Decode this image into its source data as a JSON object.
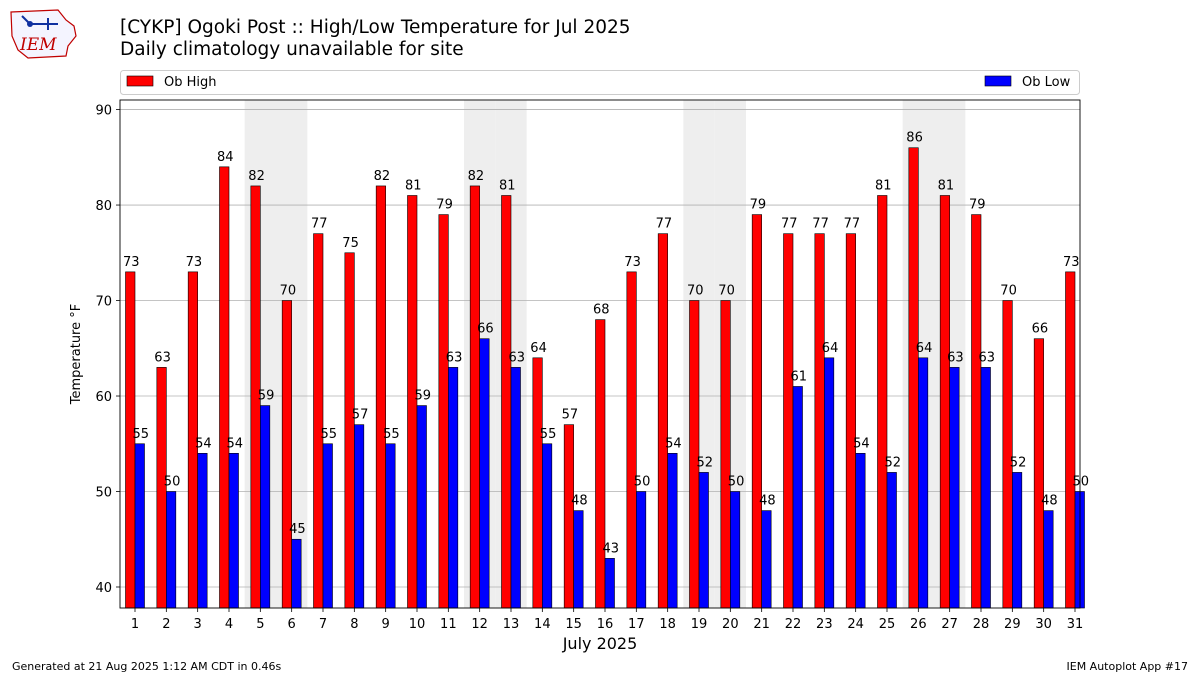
{
  "title_line1": "[CYKP] Ogoki Post :: High/Low Temperature for Jul 2025",
  "title_line2": "Daily climatology unavailable for site",
  "logo_text": "IEM",
  "footer_left": "Generated at 21 Aug 2025 1:12 AM CDT in 0.46s",
  "footer_right": "IEM Autoplot App #17",
  "chart_data": {
    "type": "bar",
    "title": "[CYKP] Ogoki Post :: High/Low Temperature for Jul 2025",
    "subtitle": "Daily climatology unavailable for site",
    "xlabel": "July 2025",
    "ylabel": "Temperature °F",
    "ylim": [
      37.8,
      91
    ],
    "yticks": [
      40,
      50,
      60,
      70,
      80,
      90
    ],
    "grid": true,
    "legend": "top",
    "categories": [
      "1",
      "2",
      "3",
      "4",
      "5",
      "6",
      "7",
      "8",
      "9",
      "10",
      "11",
      "12",
      "13",
      "14",
      "15",
      "16",
      "17",
      "18",
      "19",
      "20",
      "21",
      "22",
      "23",
      "24",
      "25",
      "26",
      "27",
      "28",
      "29",
      "30",
      "31"
    ],
    "weekend_shaded_days": [
      5,
      6,
      12,
      13,
      19,
      20,
      26,
      27
    ],
    "series": [
      {
        "name": "Ob High",
        "color": "#ff0000",
        "values": [
          73,
          63,
          73,
          84,
          82,
          70,
          77,
          75,
          82,
          81,
          79,
          82,
          81,
          64,
          57,
          68,
          73,
          77,
          70,
          70,
          79,
          77,
          77,
          77,
          81,
          86,
          81,
          79,
          70,
          66,
          73
        ]
      },
      {
        "name": "Ob Low",
        "color": "#0000ff",
        "values": [
          55,
          50,
          54,
          54,
          59,
          45,
          55,
          57,
          55,
          59,
          63,
          66,
          63,
          55,
          48,
          43,
          50,
          54,
          52,
          50,
          48,
          61,
          64,
          54,
          52,
          64,
          63,
          63,
          52,
          48,
          50
        ]
      }
    ]
  }
}
